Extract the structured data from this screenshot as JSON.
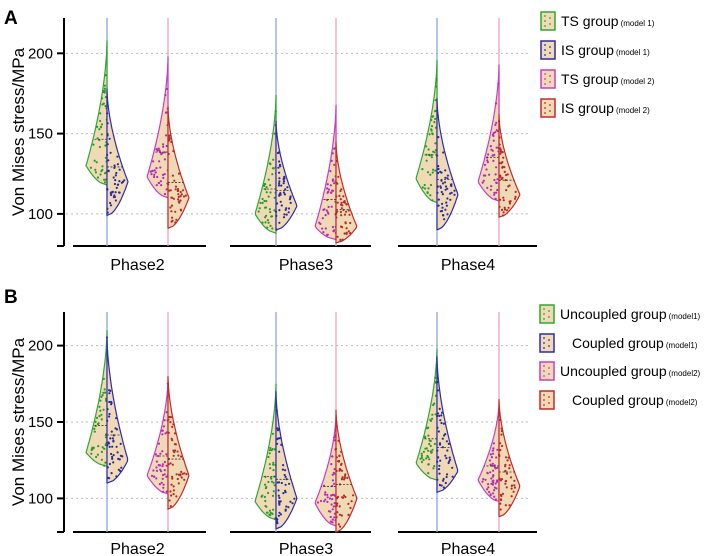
{
  "colors": {
    "ts": "#2fa82f",
    "is": "#2b2bb0",
    "ts2": "#c83cc8",
    "is2": "#c22b2b",
    "fill": "#f0d9b5",
    "ref_line_1": "#8aa6e0",
    "ref_line_2": "#f0a0b8",
    "dot_a": "#2a9a2a",
    "dot_b": "#2a2a9a",
    "dot_c": "#b52ab5",
    "dot_d": "#b52a2a",
    "grid": "#bbbbbb"
  },
  "chart_data": [
    {
      "panel": "A",
      "type": "violin",
      "ylabel": "Von Mises stress/MPa",
      "yticks": [
        100,
        150,
        200
      ],
      "ylim": [
        80,
        222
      ],
      "grid": true,
      "categories": [
        "Phase2",
        "Phase3",
        "Phase4"
      ],
      "legend": [
        {
          "main": "TS group",
          "sub": "(model 1)"
        },
        {
          "main": "IS group",
          "sub": "(model 1)"
        },
        {
          "main": "TS group",
          "sub": "(model 2)"
        },
        {
          "main": "IS group",
          "sub": "(model 2)"
        }
      ],
      "series": [
        {
          "name": "TS group (model 1)",
          "side": "left",
          "model": 1,
          "color_key": "ts",
          "min": [
            118,
            88,
            107
          ],
          "max": [
            208,
            174,
            196
          ],
          "mode": [
            130,
            100,
            122
          ]
        },
        {
          "name": "IS group (model 1)",
          "side": "right",
          "model": 1,
          "color_key": "is",
          "min": [
            99,
            90,
            90
          ],
          "max": [
            178,
            158,
            172
          ],
          "mode": [
            120,
            105,
            112
          ]
        },
        {
          "name": "TS group (model 2)",
          "side": "left",
          "model": 2,
          "color_key": "ts2",
          "min": [
            110,
            84,
            108
          ],
          "max": [
            198,
            168,
            193
          ],
          "mode": [
            123,
            92,
            120
          ]
        },
        {
          "name": "IS group (model 2)",
          "side": "right",
          "model": 2,
          "color_key": "is2",
          "min": [
            91,
            82,
            98
          ],
          "max": [
            167,
            145,
            162
          ],
          "mode": [
            110,
            92,
            112
          ]
        }
      ]
    },
    {
      "panel": "B",
      "type": "violin",
      "ylabel": "Von Mises stress/MPa",
      "yticks": [
        100,
        150,
        200
      ],
      "ylim": [
        78,
        222
      ],
      "grid": true,
      "categories": [
        "Phase2",
        "Phase3",
        "Phase4"
      ],
      "legend": [
        {
          "main": "Uncoupled group",
          "sub": "(model1)"
        },
        {
          "main": "Coupled group",
          "sub": "(model1)"
        },
        {
          "main": "Uncoupled group",
          "sub": "(model2)"
        },
        {
          "main": "Coupled group",
          "sub": "(model2)"
        }
      ],
      "series": [
        {
          "name": "Uncoupled group (model1)",
          "side": "left",
          "model": 1,
          "color_key": "ts",
          "min": [
            121,
            86,
            112
          ],
          "max": [
            210,
            175,
            198
          ],
          "mode": [
            130,
            98,
            123
          ]
        },
        {
          "name": "Coupled group (model1)",
          "side": "right",
          "model": 1,
          "color_key": "is",
          "min": [
            110,
            80,
            104
          ],
          "max": [
            206,
            170,
            193
          ],
          "mode": [
            125,
            100,
            118
          ]
        },
        {
          "name": "Uncoupled group (model2)",
          "side": "left",
          "model": 2,
          "color_key": "ts2",
          "min": [
            103,
            82,
            98
          ],
          "max": [
            178,
            155,
            163
          ],
          "mode": [
            115,
            97,
            112
          ]
        },
        {
          "name": "Coupled group (model2)",
          "side": "right",
          "model": 2,
          "color_key": "is2",
          "min": [
            93,
            78,
            88
          ],
          "max": [
            180,
            158,
            165
          ],
          "mode": [
            115,
            100,
            108
          ]
        }
      ]
    }
  ]
}
